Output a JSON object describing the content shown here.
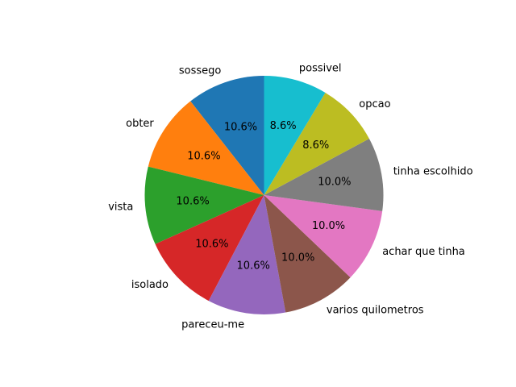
{
  "chart_data": {
    "type": "pie",
    "start_angle_deg": 90,
    "direction": "counterclockwise",
    "slices": [
      {
        "label": "sossego",
        "value": 10.6,
        "pct_label": "10.6%",
        "color": "#1f77b4"
      },
      {
        "label": "obter",
        "value": 10.6,
        "pct_label": "10.6%",
        "color": "#ff7f0e"
      },
      {
        "label": "vista",
        "value": 10.6,
        "pct_label": "10.6%",
        "color": "#2ca02c"
      },
      {
        "label": "isolado",
        "value": 10.6,
        "pct_label": "10.6%",
        "color": "#d62728"
      },
      {
        "label": "pareceu-me",
        "value": 10.6,
        "pct_label": "10.6%",
        "color": "#9467bd"
      },
      {
        "label": "varios quilometros",
        "value": 10.0,
        "pct_label": "10.0%",
        "color": "#8c564b"
      },
      {
        "label": "achar que tinha",
        "value": 10.0,
        "pct_label": "10.0%",
        "color": "#e377c2"
      },
      {
        "label": "tinha escolhido",
        "value": 10.0,
        "pct_label": "10.0%",
        "color": "#7f7f7f"
      },
      {
        "label": "opcao",
        "value": 8.6,
        "pct_label": "8.6%",
        "color": "#bcbd22"
      },
      {
        "label": "possivel",
        "value": 8.6,
        "pct_label": "8.6%",
        "color": "#17becf"
      }
    ]
  }
}
